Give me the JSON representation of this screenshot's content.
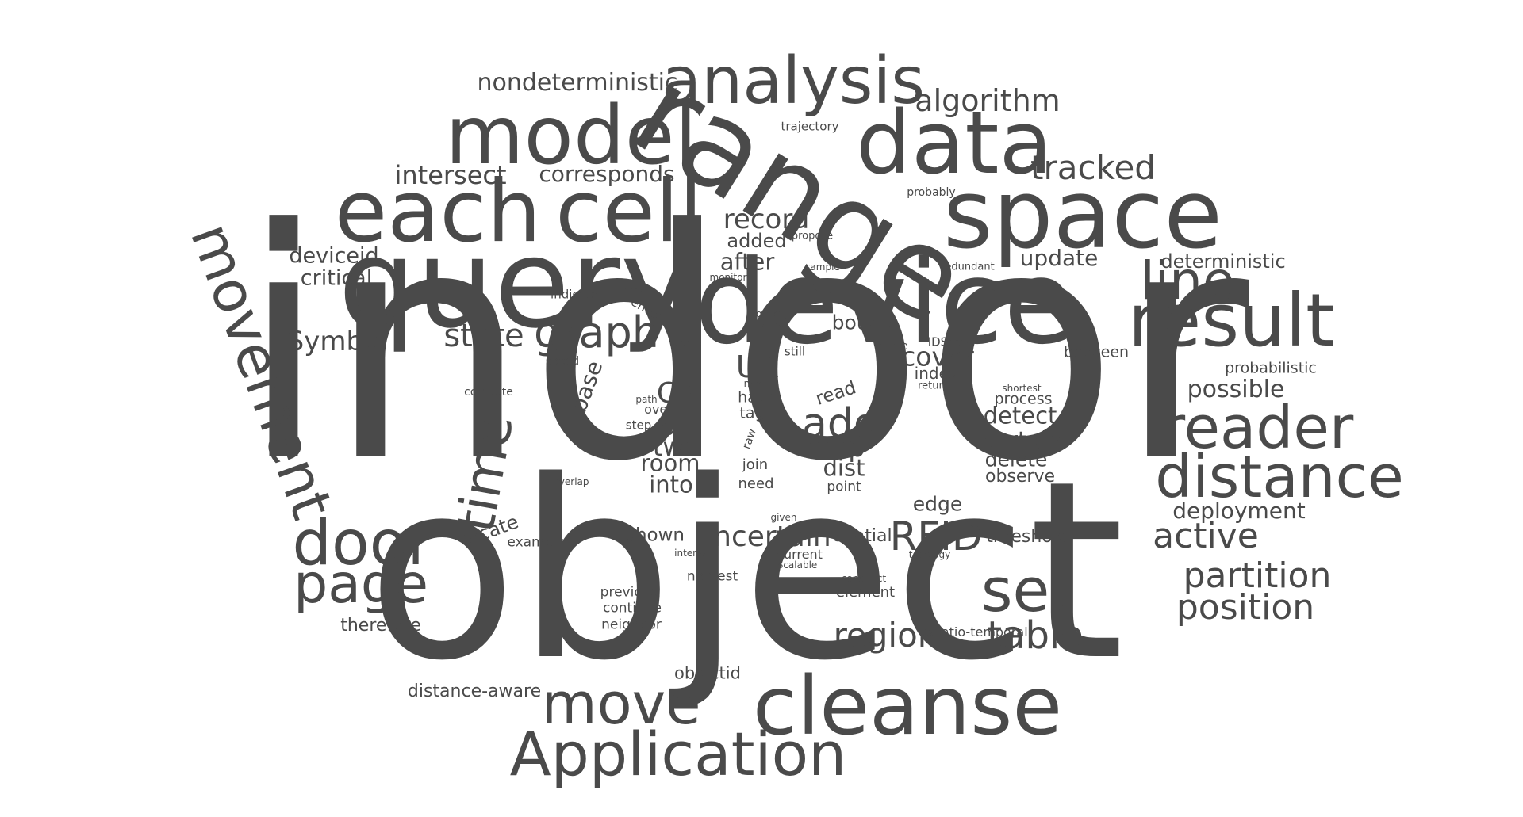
{
  "cloud": {
    "words": [
      {
        "text": "indoor"
      },
      {
        "text": "object"
      },
      {
        "text": "device"
      },
      {
        "text": "query"
      },
      {
        "text": "range"
      },
      {
        "text": "each"
      },
      {
        "text": "cell"
      },
      {
        "text": "space"
      },
      {
        "text": "model"
      },
      {
        "text": "data"
      },
      {
        "text": "analysis"
      },
      {
        "text": "cleanse"
      },
      {
        "text": "Application"
      },
      {
        "text": "result"
      },
      {
        "text": "movement"
      },
      {
        "text": "reader"
      },
      {
        "text": "distance"
      },
      {
        "text": "door"
      },
      {
        "text": "page"
      },
      {
        "text": "move"
      },
      {
        "text": "set"
      },
      {
        "text": "line"
      },
      {
        "text": "time"
      },
      {
        "text": "graph"
      },
      {
        "text": "add"
      },
      {
        "text": "algorithm"
      },
      {
        "text": "tracked"
      },
      {
        "text": "partition"
      },
      {
        "text": "position"
      },
      {
        "text": "active"
      },
      {
        "text": "table"
      },
      {
        "text": "region"
      },
      {
        "text": "RFID"
      },
      {
        "text": "uncertain"
      },
      {
        "text": "state"
      },
      {
        "text": "nondeterministic"
      },
      {
        "text": "intersect"
      },
      {
        "text": "corresponds"
      },
      {
        "text": "record"
      },
      {
        "text": "deviceid"
      },
      {
        "text": "critical"
      },
      {
        "text": "Symbol"
      },
      {
        "text": "after"
      },
      {
        "text": "added"
      },
      {
        "text": "update"
      },
      {
        "text": "deterministic"
      },
      {
        "text": "all"
      },
      {
        "text": "two"
      },
      {
        "text": "room"
      },
      {
        "text": "into"
      },
      {
        "text": "CR"
      },
      {
        "text": "UR"
      },
      {
        "text": "map"
      },
      {
        "text": "dist"
      },
      {
        "text": "cover"
      },
      {
        "text": "index"
      },
      {
        "text": "bound"
      },
      {
        "text": "detect"
      },
      {
        "text": "certain"
      },
      {
        "text": "delete"
      },
      {
        "text": "observe"
      },
      {
        "text": "possible"
      },
      {
        "text": "deployment"
      },
      {
        "text": "threshold"
      },
      {
        "text": "spatial"
      },
      {
        "text": "edge"
      },
      {
        "text": "locate"
      },
      {
        "text": "example"
      },
      {
        "text": "shown"
      },
      {
        "text": "therefore"
      },
      {
        "text": "distance-aware"
      },
      {
        "text": "objectid"
      },
      {
        "text": "previous"
      },
      {
        "text": "continue"
      },
      {
        "text": "neighbor"
      },
      {
        "text": "element"
      },
      {
        "text": "nearest"
      },
      {
        "text": "current"
      },
      {
        "text": "spatio-temporal"
      },
      {
        "text": "probabilistic"
      },
      {
        "text": "between"
      },
      {
        "text": "process"
      },
      {
        "text": "shortest"
      },
      {
        "text": "IDSet"
      },
      {
        "text": "circle"
      },
      {
        "text": "return"
      },
      {
        "text": "read"
      },
      {
        "text": "hash"
      },
      {
        "text": "tag"
      },
      {
        "text": "join"
      },
      {
        "text": "need"
      },
      {
        "text": "point"
      },
      {
        "text": "raw"
      },
      {
        "text": "new"
      },
      {
        "text": "base"
      },
      {
        "text": "compute"
      },
      {
        "text": "speed"
      },
      {
        "text": "indicate"
      },
      {
        "text": "denote"
      },
      {
        "text": "enter"
      },
      {
        "text": "monitor"
      },
      {
        "text": "sample"
      },
      {
        "text": "propose"
      },
      {
        "text": "redundant"
      },
      {
        "text": "probably"
      },
      {
        "text": "trajectory"
      },
      {
        "text": "other"
      },
      {
        "text": "seed"
      },
      {
        "text": "still"
      },
      {
        "text": "same"
      },
      {
        "text": "path"
      },
      {
        "text": "over"
      },
      {
        "text": "step"
      },
      {
        "text": "overlap"
      },
      {
        "text": "given"
      },
      {
        "text": "interval"
      },
      {
        "text": "Scalable"
      },
      {
        "text": "construct"
      },
      {
        "text": "topology"
      }
    ]
  }
}
